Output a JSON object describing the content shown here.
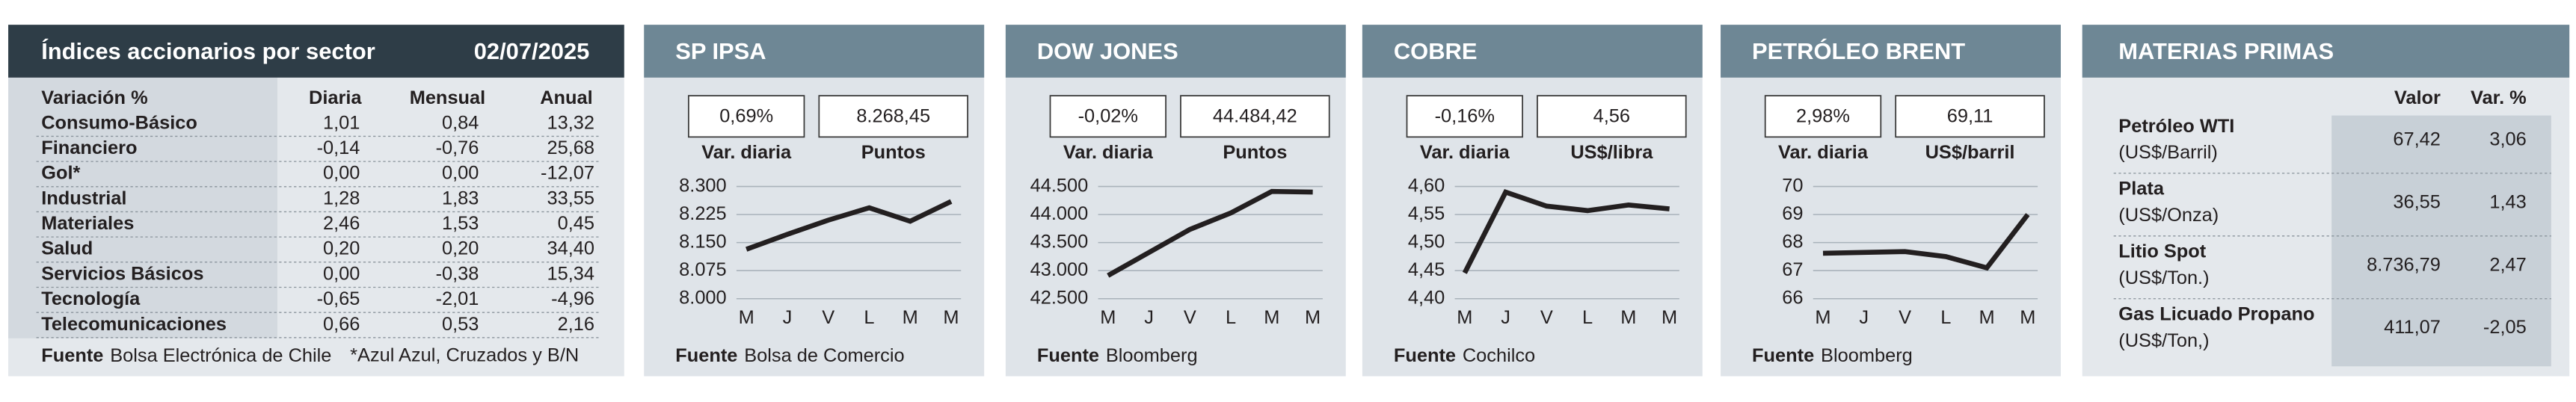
{
  "sector_table": {
    "title": "Índices accionarios por sector",
    "date": "02/07/2025",
    "header": [
      "Variación %",
      "Diaria",
      "Mensual",
      "Anual"
    ],
    "rows": [
      [
        "Consumo-Básico",
        "1,01",
        "0,84",
        "13,32"
      ],
      [
        "Financiero",
        "-0,14",
        "-0,76",
        "25,68"
      ],
      [
        "Gol*",
        "0,00",
        "0,00",
        "-12,07"
      ],
      [
        "Industrial",
        "1,28",
        "1,83",
        "33,55"
      ],
      [
        "Materiales",
        "2,46",
        "1,53",
        "0,45"
      ],
      [
        "Salud",
        "0,20",
        "0,20",
        "34,40"
      ],
      [
        "Servicios Básicos",
        "0,00",
        "-0,38",
        "15,34"
      ],
      [
        "Tecnología",
        "-0,65",
        "-2,01",
        "-4,96"
      ],
      [
        "Telecomunicaciones",
        "0,66",
        "0,53",
        "2,16"
      ]
    ],
    "source_label": "Fuente",
    "source": "Bolsa Electrónica de Chile",
    "note": "*Azul Azul, Cruzados y B/N"
  },
  "chart_data": [
    {
      "type": "line",
      "title": "SP IPSA",
      "stats": [
        {
          "value": "0,69%",
          "label": "Var. diaria"
        },
        {
          "value": "8.268,45",
          "label": "Puntos"
        }
      ],
      "categories": [
        "M",
        "J",
        "V",
        "L",
        "M",
        "M"
      ],
      "series": [
        {
          "color": "#231f20",
          "values": [
            8132,
            8172,
            8210,
            8243,
            8207,
            8260
          ]
        }
      ],
      "ylim": [
        8000,
        8300
      ],
      "yticks": [
        {
          "value": 8000,
          "label": "8.000"
        },
        {
          "value": 8075,
          "label": "8.075"
        },
        {
          "value": 8150,
          "label": "8.150"
        },
        {
          "value": 8225,
          "label": "8.225"
        },
        {
          "value": 8300,
          "label": "8.300"
        }
      ],
      "grid": true,
      "source_label": "Fuente",
      "source": "Bolsa de Comercio"
    },
    {
      "type": "line",
      "title": "DOW JONES",
      "stats": [
        {
          "value": "-0,02%",
          "label": "Var. diaria"
        },
        {
          "value": "44.484,42",
          "label": "Puntos"
        }
      ],
      "categories": [
        "M",
        "J",
        "V",
        "L",
        "M",
        "M"
      ],
      "series": [
        {
          "color": "#231f20",
          "values": [
            42912,
            43324,
            43735,
            44029,
            44412,
            44400
          ]
        }
      ],
      "ylim": [
        42500,
        44500
      ],
      "yticks": [
        {
          "value": 42500,
          "label": "42.500"
        },
        {
          "value": 43000,
          "label": "43.000"
        },
        {
          "value": 43500,
          "label": "43.500"
        },
        {
          "value": 44000,
          "label": "44.000"
        },
        {
          "value": 44500,
          "label": "44.500"
        }
      ],
      "grid": true,
      "source_label": "Fuente",
      "source": "Bloomberg"
    },
    {
      "type": "line",
      "title": "COBRE",
      "stats": [
        {
          "value": "-0,16%",
          "label": "Var. diaria"
        },
        {
          "value": "4,56",
          "label": "US$/libra"
        }
      ],
      "categories": [
        "M",
        "J",
        "V",
        "L",
        "M",
        "M"
      ],
      "series": [
        {
          "color": "#231f20",
          "values": [
            4.446,
            4.59,
            4.565,
            4.557,
            4.567,
            4.56
          ]
        }
      ],
      "ylim": [
        4.4,
        4.6
      ],
      "yticks": [
        {
          "value": 4.4,
          "label": "4,40"
        },
        {
          "value": 4.45,
          "label": "4,45"
        },
        {
          "value": 4.5,
          "label": "4,50"
        },
        {
          "value": 4.55,
          "label": "4,55"
        },
        {
          "value": 4.6,
          "label": "4,60"
        }
      ],
      "grid": true,
      "source_label": "Fuente",
      "source": "Cochilco"
    },
    {
      "type": "line",
      "title": "PETRÓLEO BRENT",
      "stats": [
        {
          "value": "2,98%",
          "label": "Var. diaria"
        },
        {
          "value": "69,11",
          "label": "US$/barril"
        }
      ],
      "categories": [
        "M",
        "J",
        "V",
        "L",
        "M",
        "M"
      ],
      "series": [
        {
          "color": "#231f20",
          "values": [
            67.62,
            67.65,
            67.68,
            67.5,
            67.1,
            69.0
          ]
        }
      ],
      "ylim": [
        66,
        70
      ],
      "yticks": [
        66,
        67,
        68,
        69,
        70
      ],
      "grid": true,
      "source_label": "Fuente",
      "source": "Bloomberg"
    }
  ],
  "commodities": {
    "title": "MATERIAS PRIMAS",
    "header": [
      "Valor",
      "Var. %"
    ],
    "rows": [
      {
        "name": "Petróleo WTI",
        "unit": "(US$/Barril)",
        "value": "67,42",
        "change": "3,06"
      },
      {
        "name": "Plata",
        "unit": "(US$/Onza)",
        "value": "36,55",
        "change": "1,43"
      },
      {
        "name": "Litio Spot",
        "unit": "(US$/Ton.)",
        "value": "8.736,79",
        "change": "2,47"
      },
      {
        "name": "Gas Licuado Propano",
        "unit": "(US$/Ton,)",
        "value": "411,07",
        "change": "-2,05"
      }
    ]
  }
}
